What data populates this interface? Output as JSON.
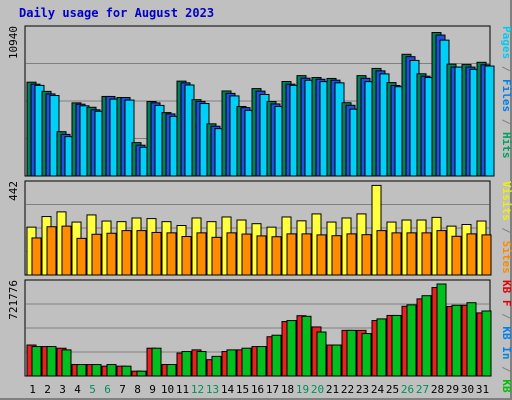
{
  "chart_data": {
    "type": "bar",
    "title": "Daily usage for August 2023",
    "days": [
      "1",
      "2",
      "3",
      "4",
      "5",
      "6",
      "7",
      "8",
      "9",
      "10",
      "11",
      "12",
      "13",
      "14",
      "15",
      "16",
      "17",
      "18",
      "19",
      "20",
      "21",
      "22",
      "23",
      "24",
      "25",
      "26",
      "27",
      "28",
      "29",
      "30",
      "31"
    ],
    "weekend_days": [
      "5",
      "6",
      "12",
      "13",
      "19",
      "20",
      "26",
      "27"
    ],
    "panels": [
      {
        "max_label": "10940",
        "ymax": 10940,
        "axis_legend": [
          {
            "text": "Pages",
            "color": "#00ccf0"
          },
          {
            "text": " / ",
            "color": "#808080"
          },
          {
            "text": "Files",
            "color": "#0080f0"
          },
          {
            "text": " / ",
            "color": "#808080"
          },
          {
            "text": "Hits",
            "color": "#00a060"
          }
        ],
        "series": [
          {
            "name": "Hits",
            "color": "#00805c",
            "values": [
              7030,
              6340,
              3320,
              5480,
              5150,
              5960,
              5880,
              2500,
              5580,
              4750,
              7110,
              5720,
              3910,
              6370,
              5210,
              6550,
              5580,
              7080,
              7520,
              7380,
              7310,
              5490,
              7520,
              8060,
              7000,
              9120,
              7660,
              10750,
              8380,
              8350,
              8520
            ]
          },
          {
            "name": "Files",
            "color": "#2050e0",
            "values": [
              6880,
              6150,
              3120,
              5380,
              4960,
              5960,
              5880,
              2310,
              5480,
              4650,
              6980,
              5590,
              3730,
              6190,
              5120,
              6360,
              5400,
              6880,
              7330,
              7250,
              7180,
              5300,
              7320,
              7880,
              6780,
              8940,
              7480,
              10560,
              8160,
              8160,
              8330
            ]
          },
          {
            "name": "Pages",
            "color": "#00d0f8",
            "values": [
              6790,
              6030,
              2950,
              5260,
              4850,
              5760,
              5690,
              2150,
              5290,
              4470,
              6820,
              5430,
              3550,
              6000,
              4920,
              6110,
              5210,
              6790,
              7170,
              7070,
              6980,
              5010,
              7070,
              7650,
              6690,
              8660,
              7380,
              10180,
              8160,
              7990,
              8240
            ]
          }
        ]
      },
      {
        "max_label": "442",
        "ymax": 442,
        "axis_legend": [
          {
            "text": "Visits",
            "color": "#f0f000"
          },
          {
            "text": " / ",
            "color": "#808080"
          },
          {
            "text": "Sites",
            "color": "#ff8800"
          }
        ],
        "series": [
          {
            "name": "Visits",
            "color": "#ffff40",
            "values": [
              235,
              287,
              310,
              260,
              295,
              265,
              262,
              280,
              277,
              262,
              243,
              280,
              262,
              285,
              270,
              252,
              235,
              285,
              266,
              300,
              260,
              280,
              300,
              440,
              260,
              270,
              270,
              283,
              240,
              248,
              265
            ]
          },
          {
            "name": "Sites",
            "color": "#ff8c00",
            "values": [
              182,
              237,
              240,
              180,
              200,
              205,
              218,
              218,
              209,
              207,
              189,
              207,
              185,
              207,
              201,
              192,
              188,
              202,
              202,
              197,
              193,
              202,
              198,
              218,
              207,
              207,
              207,
              218,
              190,
              202,
              197
            ]
          }
        ]
      },
      {
        "max_label": "721776",
        "ymax": 721776,
        "axis_legend": [
          {
            "text": "KB F",
            "color": "#e80000"
          },
          {
            "text": " / ",
            "color": "#808080"
          },
          {
            "text": "KB In",
            "color": "#0080f0"
          },
          {
            "text": " / ",
            "color": "#808080"
          },
          {
            "text": "KB Out",
            "color": "#00c000"
          }
        ],
        "series": [
          {
            "name": "KB F",
            "color": "#e82020",
            "values": [
              243000,
              231000,
              218000,
              90000,
              90000,
              77000,
              77000,
              38000,
              218000,
              90000,
              180000,
              205000,
              128000,
              192000,
              205000,
              231000,
              308000,
              427000,
              473000,
              385000,
              243000,
              358000,
              358000,
              435000,
              475000,
              547000,
              605000,
              694000,
              545000,
              555000,
              495000
            ]
          },
          {
            "name": "KB Out",
            "color": "#00c020",
            "values": [
              231000,
              231000,
              205000,
              90000,
              90000,
              90000,
              77000,
              38000,
              218000,
              90000,
              192000,
              192000,
              154000,
              205000,
              218000,
              231000,
              320000,
              435000,
              468000,
              345000,
              243000,
              358000,
              333000,
              448000,
              475000,
              558000,
              630000,
              721776,
              555000,
              575000,
              510000
            ]
          }
        ]
      }
    ]
  }
}
